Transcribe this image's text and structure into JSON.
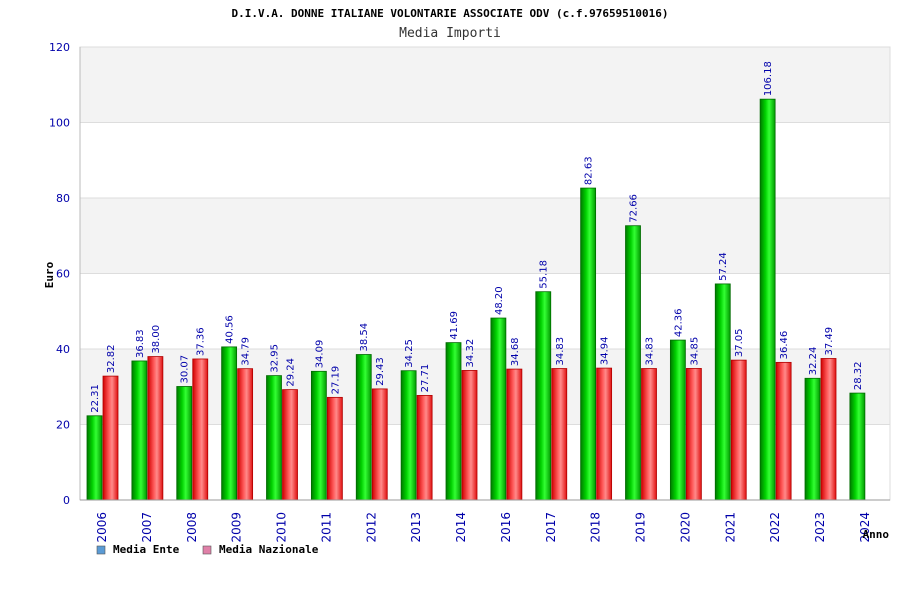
{
  "chart_data": {
    "type": "bar",
    "title": "D.I.V.A. DONNE ITALIANE VOLONTARIE ASSOCIATE ODV (c.f.97659510016)",
    "subtitle": "Media Importi",
    "xlabel": "Anno",
    "ylabel": "Euro",
    "ylim": [
      0,
      120
    ],
    "yticks": [
      0,
      20,
      40,
      60,
      80,
      100,
      120
    ],
    "grid": true,
    "legend_position": "bottom-left",
    "categories": [
      "2006",
      "2007",
      "2008",
      "2009",
      "2010",
      "2011",
      "2012",
      "2013",
      "2014",
      "2016",
      "2017",
      "2018",
      "2019",
      "2020",
      "2021",
      "2022",
      "2023",
      "2024"
    ],
    "series": [
      {
        "name": "Media Ente",
        "legend_color": "#5b9bd5",
        "color": "#00c000",
        "values": [
          22.31,
          36.83,
          30.07,
          40.56,
          32.95,
          34.09,
          38.54,
          34.25,
          41.69,
          48.2,
          55.18,
          82.63,
          72.66,
          42.36,
          57.24,
          106.18,
          32.24,
          28.32
        ],
        "labels": [
          "22.31",
          "36.83",
          "30.07",
          "40.56",
          "32.95",
          "34.09",
          "38.54",
          "34.25",
          "41.69",
          "48.20",
          "55.18",
          "82.63",
          "72.66",
          "42.36",
          "57.24",
          "106.18",
          "32.24",
          "28.32"
        ]
      },
      {
        "name": "Media Nazionale",
        "legend_color": "#e080a8",
        "color": "#e82020",
        "values": [
          32.82,
          38.0,
          37.36,
          34.79,
          29.24,
          27.19,
          29.43,
          27.71,
          34.32,
          34.68,
          34.83,
          34.94,
          34.83,
          34.85,
          37.05,
          36.46,
          37.49,
          null
        ],
        "labels": [
          "32.82",
          "38.00",
          "37.36",
          "34.79",
          "29.24",
          "27.19",
          "29.43",
          "27.71",
          "34.32",
          "34.68",
          "34.83",
          "34.94",
          "34.83",
          "34.85",
          "37.05",
          "36.46",
          "37.49",
          ""
        ]
      }
    ]
  }
}
